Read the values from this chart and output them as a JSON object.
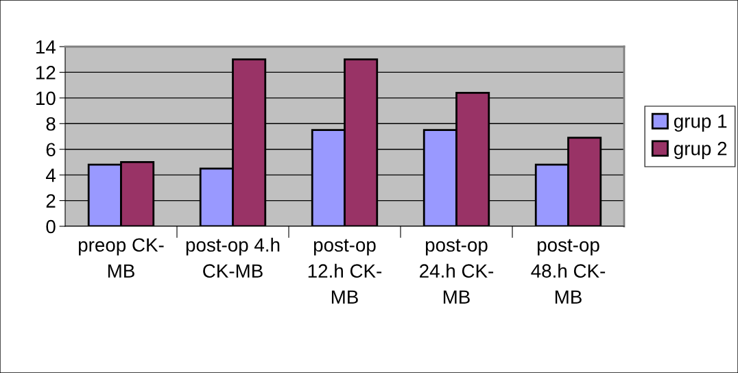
{
  "chart_data": {
    "type": "bar",
    "categories": [
      "preop CK-\nMB",
      "post-op 4.h\nCK-MB",
      "post-op\n12.h CK-\nMB",
      "post-op\n24.h CK-\nMB",
      "post-op\n48.h CK-\nMB"
    ],
    "series": [
      {
        "name": "grup 1",
        "color": "#9999ff",
        "values": [
          4.8,
          4.5,
          7.5,
          7.5,
          4.8
        ]
      },
      {
        "name": "grup 2",
        "color": "#993366",
        "values": [
          5.0,
          13.0,
          13.0,
          10.4,
          6.9
        ]
      }
    ],
    "ylim": [
      0,
      14
    ],
    "yticks": [
      0,
      2,
      4,
      6,
      8,
      10,
      12,
      14
    ],
    "grid": "y",
    "legend": "right"
  }
}
